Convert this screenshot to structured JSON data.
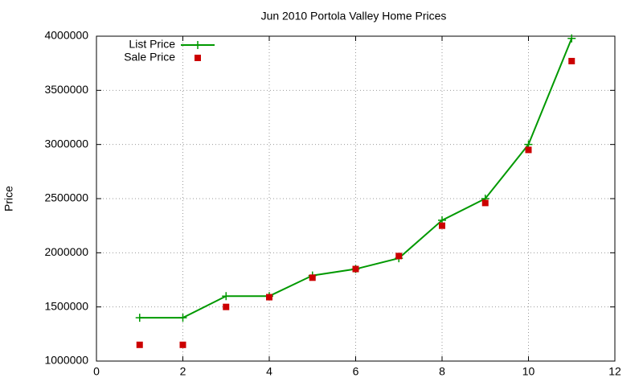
{
  "chart_data": {
    "type": "line",
    "title": "Jun 2010 Portola Valley Home Prices",
    "ylabel": "Price",
    "x": [
      1,
      2,
      3,
      4,
      5,
      6,
      7,
      8,
      9,
      10,
      11
    ],
    "series": [
      {
        "name": "List Price",
        "color": "#009900",
        "marker": "plus",
        "line": true,
        "values": [
          1400000,
          1400000,
          1600000,
          1600000,
          1790000,
          1850000,
          1950000,
          2300000,
          2500000,
          3000000,
          3980000
        ]
      },
      {
        "name": "Sale Price",
        "color": "#cc0000",
        "marker": "square",
        "line": false,
        "values": [
          1150000,
          1150000,
          1500000,
          1590000,
          1770000,
          1850000,
          1970000,
          2250000,
          2460000,
          2950000,
          3770000
        ]
      }
    ],
    "xlim": [
      0,
      12
    ],
    "xticks": [
      0,
      2,
      4,
      6,
      8,
      10,
      12
    ],
    "ylim": [
      1000000,
      4000000
    ],
    "yticks": [
      1000000,
      1500000,
      2000000,
      2500000,
      3000000,
      3500000,
      4000000
    ],
    "grid": true,
    "legend": "top-left"
  }
}
